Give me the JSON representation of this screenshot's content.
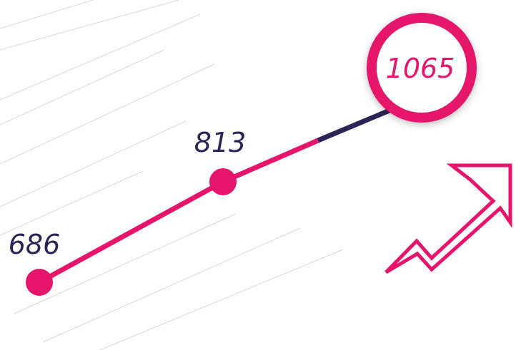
{
  "points": [
    {
      "label": "686"
    },
    {
      "label": "813"
    },
    {
      "label": "1065"
    }
  ]
}
